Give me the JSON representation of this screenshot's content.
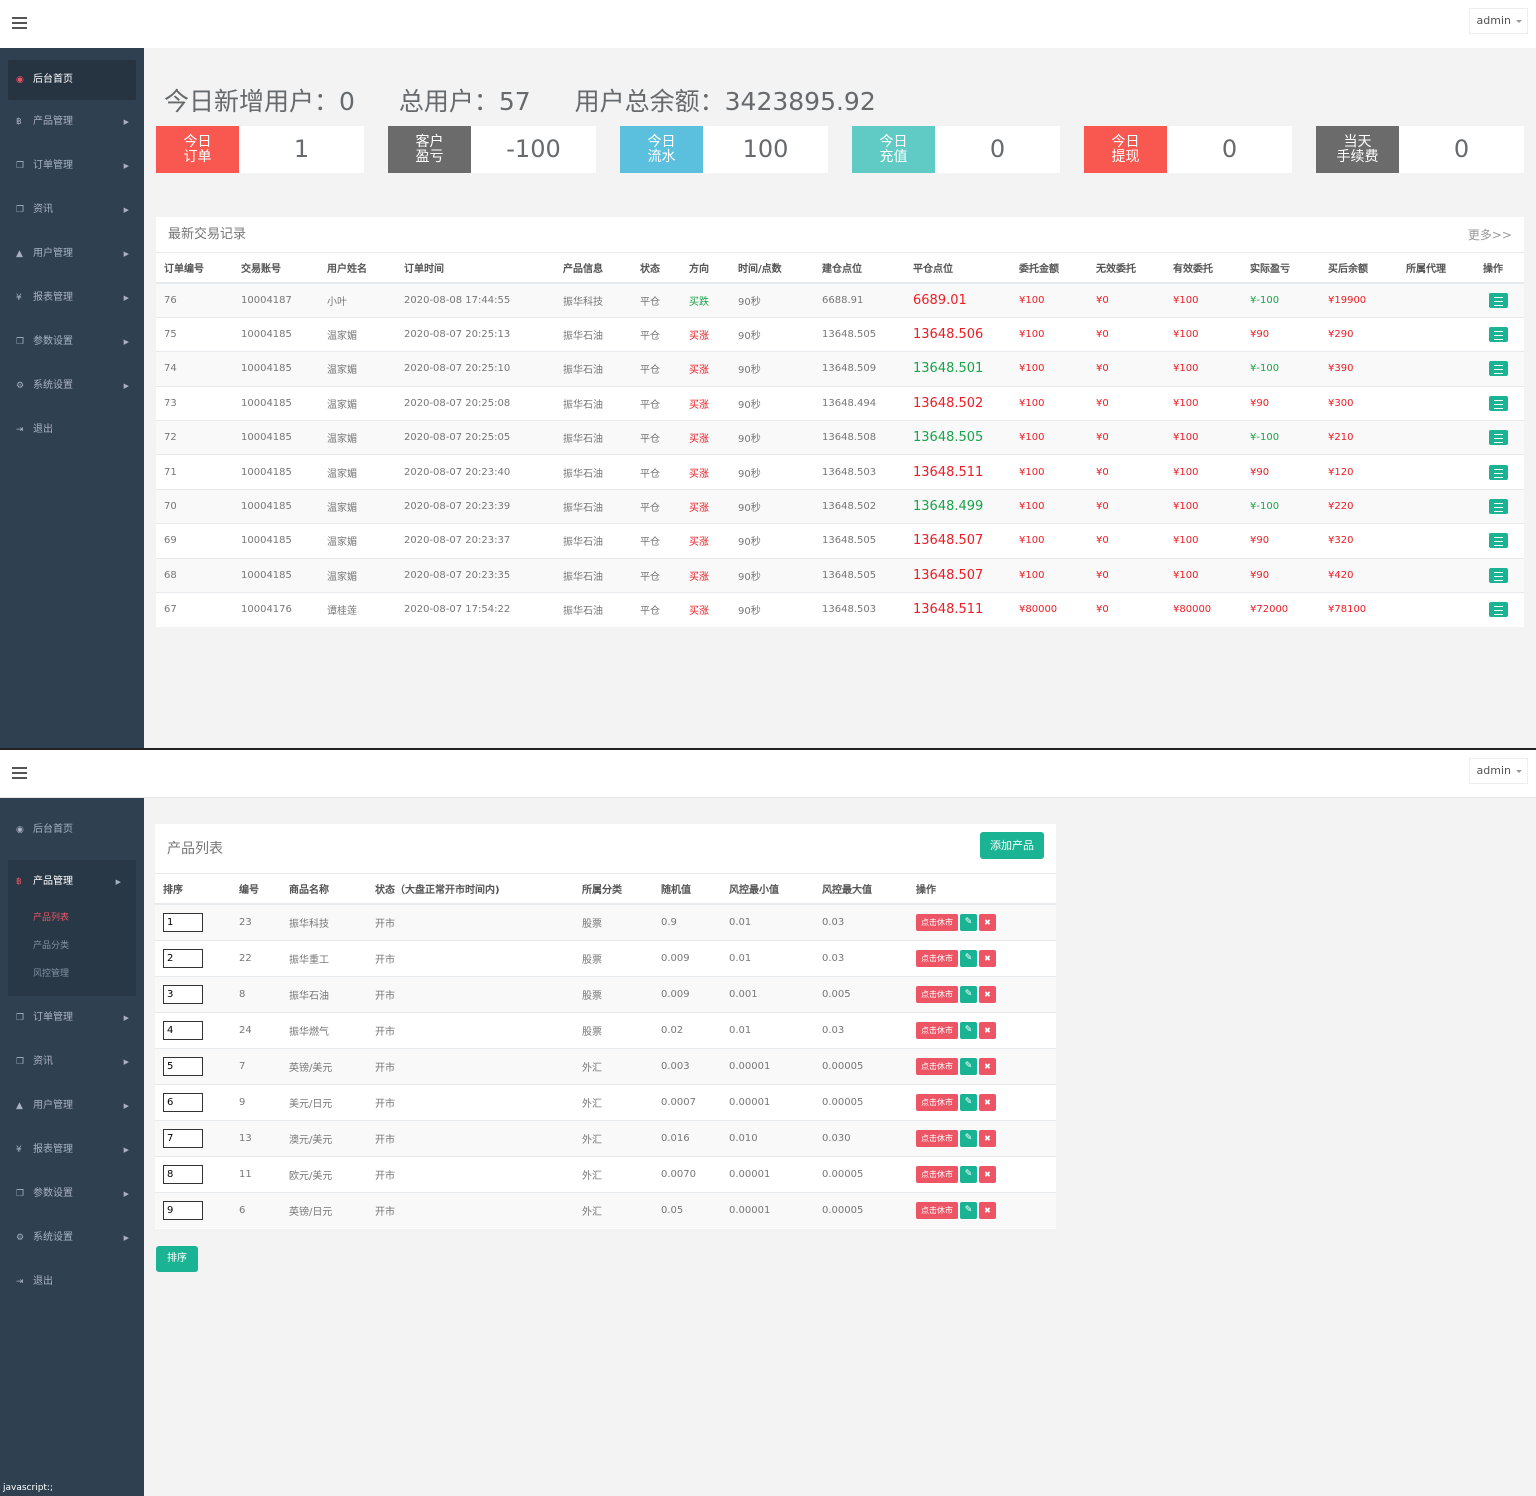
{
  "colors": {
    "sidebar": "#2f4050",
    "red": "#ed5565",
    "teal": "#1ab394",
    "cyan": "#23c6c8",
    "gray": "#676a6c"
  },
  "header": {
    "user": "admin"
  },
  "dashboard": {
    "sidebar": [
      {
        "label": "后台首页",
        "icon": "dashboard-icon"
      },
      {
        "label": "产品管理",
        "icon": "bitcoin-icon"
      },
      {
        "label": "订单管理",
        "icon": "copy-icon"
      },
      {
        "label": "资讯",
        "icon": "copy-icon"
      },
      {
        "label": "用户管理",
        "icon": "user-icon"
      },
      {
        "label": "报表管理",
        "icon": "yen-icon"
      },
      {
        "label": "参数设置",
        "icon": "copy-icon"
      },
      {
        "label": "系统设置",
        "icon": "cogs-icon"
      },
      {
        "label": "退出",
        "icon": "sign-out-icon"
      }
    ],
    "summary": {
      "new_users": "今日新增用户：0",
      "total_users": "总用户：57",
      "total_balance": "用户总余额：3423895.92"
    },
    "stats": [
      {
        "label": "今日\n订单",
        "value": "1",
        "color": "#f8584f"
      },
      {
        "label": "客户\n盈亏",
        "value": "-100",
        "color": "#6b6b6b"
      },
      {
        "label": "今日\n流水",
        "value": "100",
        "color": "#5bc0de"
      },
      {
        "label": "今日\n充值",
        "value": "0",
        "color": "#5fcbc4"
      },
      {
        "label": "今日\n提现",
        "value": "0",
        "color": "#f8584f"
      },
      {
        "label": "当天\n手续费",
        "value": "0",
        "color": "#6b6b6b"
      }
    ],
    "trades": {
      "title": "最新交易记录",
      "more": "更多>>",
      "columns": [
        "订单编号",
        "交易账号",
        "用户姓名",
        "订单时间",
        "产品信息",
        "状态",
        "方向",
        "时间/点数",
        "建仓点位",
        "平仓点位",
        "委托金额",
        "无效委托",
        "有效委托",
        "实际盈亏",
        "买后余额",
        "所属代理",
        "操作"
      ],
      "rows": [
        {
          "id": "76",
          "account": "10004187",
          "name": "小叶",
          "time": "2020-08-08 17:44:55",
          "product": "振华科技",
          "status": "平仓",
          "dir": "买跌",
          "dur": "90秒",
          "open": "6688.91",
          "close": "6689.01",
          "close_color": "red",
          "amount": "¥100",
          "invalid": "¥0",
          "valid": "¥100",
          "pnl": "¥-100",
          "pnl_color": "green",
          "balance": "¥19900",
          "agent": ""
        },
        {
          "id": "75",
          "account": "10004185",
          "name": "温家媚",
          "time": "2020-08-07 20:25:13",
          "product": "振华石油",
          "status": "平仓",
          "dir": "买涨",
          "dur": "90秒",
          "open": "13648.505",
          "close": "13648.506",
          "close_color": "red",
          "amount": "¥100",
          "invalid": "¥0",
          "valid": "¥100",
          "pnl": "¥90",
          "pnl_color": "red",
          "balance": "¥290",
          "agent": ""
        },
        {
          "id": "74",
          "account": "10004185",
          "name": "温家媚",
          "time": "2020-08-07 20:25:10",
          "product": "振华石油",
          "status": "平仓",
          "dir": "买涨",
          "dur": "90秒",
          "open": "13648.509",
          "close": "13648.501",
          "close_color": "green",
          "amount": "¥100",
          "invalid": "¥0",
          "valid": "¥100",
          "pnl": "¥-100",
          "pnl_color": "green",
          "balance": "¥390",
          "agent": ""
        },
        {
          "id": "73",
          "account": "10004185",
          "name": "温家媚",
          "time": "2020-08-07 20:25:08",
          "product": "振华石油",
          "status": "平仓",
          "dir": "买涨",
          "dur": "90秒",
          "open": "13648.494",
          "close": "13648.502",
          "close_color": "red",
          "amount": "¥100",
          "invalid": "¥0",
          "valid": "¥100",
          "pnl": "¥90",
          "pnl_color": "red",
          "balance": "¥300",
          "agent": ""
        },
        {
          "id": "72",
          "account": "10004185",
          "name": "温家媚",
          "time": "2020-08-07 20:25:05",
          "product": "振华石油",
          "status": "平仓",
          "dir": "买涨",
          "dur": "90秒",
          "open": "13648.508",
          "close": "13648.505",
          "close_color": "green",
          "amount": "¥100",
          "invalid": "¥0",
          "valid": "¥100",
          "pnl": "¥-100",
          "pnl_color": "green",
          "balance": "¥210",
          "agent": ""
        },
        {
          "id": "71",
          "account": "10004185",
          "name": "温家媚",
          "time": "2020-08-07 20:23:40",
          "product": "振华石油",
          "status": "平仓",
          "dir": "买涨",
          "dur": "90秒",
          "open": "13648.503",
          "close": "13648.511",
          "close_color": "red",
          "amount": "¥100",
          "invalid": "¥0",
          "valid": "¥100",
          "pnl": "¥90",
          "pnl_color": "red",
          "balance": "¥120",
          "agent": ""
        },
        {
          "id": "70",
          "account": "10004185",
          "name": "温家媚",
          "time": "2020-08-07 20:23:39",
          "product": "振华石油",
          "status": "平仓",
          "dir": "买涨",
          "dur": "90秒",
          "open": "13648.502",
          "close": "13648.499",
          "close_color": "green",
          "amount": "¥100",
          "invalid": "¥0",
          "valid": "¥100",
          "pnl": "¥-100",
          "pnl_color": "green",
          "balance": "¥220",
          "agent": ""
        },
        {
          "id": "69",
          "account": "10004185",
          "name": "温家媚",
          "time": "2020-08-07 20:23:37",
          "product": "振华石油",
          "status": "平仓",
          "dir": "买涨",
          "dur": "90秒",
          "open": "13648.505",
          "close": "13648.507",
          "close_color": "red",
          "amount": "¥100",
          "invalid": "¥0",
          "valid": "¥100",
          "pnl": "¥90",
          "pnl_color": "red",
          "balance": "¥320",
          "agent": ""
        },
        {
          "id": "68",
          "account": "10004185",
          "name": "温家媚",
          "time": "2020-08-07 20:23:35",
          "product": "振华石油",
          "status": "平仓",
          "dir": "买涨",
          "dur": "90秒",
          "open": "13648.505",
          "close": "13648.507",
          "close_color": "red",
          "amount": "¥100",
          "invalid": "¥0",
          "valid": "¥100",
          "pnl": "¥90",
          "pnl_color": "red",
          "balance": "¥420",
          "agent": ""
        },
        {
          "id": "67",
          "account": "10004176",
          "name": "谭桂莲",
          "time": "2020-08-07 17:54:22",
          "product": "振华石油",
          "status": "平仓",
          "dir": "买涨",
          "dur": "90秒",
          "open": "13648.503",
          "close": "13648.511",
          "close_color": "red",
          "amount": "¥80000",
          "invalid": "¥0",
          "valid": "¥80000",
          "pnl": "¥72000",
          "pnl_color": "red",
          "balance": "¥78100",
          "agent": ""
        }
      ]
    }
  },
  "products": {
    "sidebar": {
      "home": "后台首页",
      "product_mgmt": "产品管理",
      "sub": [
        "产品列表",
        "产品分类",
        "风控管理"
      ],
      "rest": [
        {
          "label": "订单管理",
          "icon": "copy-icon"
        },
        {
          "label": "资讯",
          "icon": "copy-icon"
        },
        {
          "label": "用户管理",
          "icon": "user-icon"
        },
        {
          "label": "报表管理",
          "icon": "yen-icon"
        },
        {
          "label": "参数设置",
          "icon": "copy-icon"
        },
        {
          "label": "系统设置",
          "icon": "cogs-icon"
        },
        {
          "label": "退出",
          "icon": "sign-out-icon"
        }
      ]
    },
    "title": "产品列表",
    "add_button": "添加产品",
    "sort_button": "排序",
    "columns": [
      "排序",
      "编号",
      "商品名称",
      "状态（大盘正常开市时间内)",
      "所属分类",
      "随机值",
      "风控最小值",
      "风控最大值",
      "操作"
    ],
    "rows": [
      {
        "sort": "1",
        "id": "23",
        "name": "振华科技",
        "status": "开市",
        "category": "股票",
        "random": "0.9",
        "min": "0.01",
        "max": "0.03"
      },
      {
        "sort": "2",
        "id": "22",
        "name": "振华重工",
        "status": "开市",
        "category": "股票",
        "random": "0.009",
        "min": "0.01",
        "max": "0.03"
      },
      {
        "sort": "3",
        "id": "8",
        "name": "振华石油",
        "status": "开市",
        "category": "股票",
        "random": "0.009",
        "min": "0.001",
        "max": "0.005"
      },
      {
        "sort": "4",
        "id": "24",
        "name": "振华燃气",
        "status": "开市",
        "category": "股票",
        "random": "0.02",
        "min": "0.01",
        "max": "0.03"
      },
      {
        "sort": "5",
        "id": "7",
        "name": "英镑/美元",
        "status": "开市",
        "category": "外汇",
        "random": "0.003",
        "min": "0.00001",
        "max": "0.00005"
      },
      {
        "sort": "6",
        "id": "9",
        "name": "美元/日元",
        "status": "开市",
        "category": "外汇",
        "random": "0.0007",
        "min": "0.00001",
        "max": "0.00005"
      },
      {
        "sort": "7",
        "id": "13",
        "name": "澳元/美元",
        "status": "开市",
        "category": "外汇",
        "random": "0.016",
        "min": "0.010",
        "max": "0.030"
      },
      {
        "sort": "8",
        "id": "11",
        "name": "欧元/美元",
        "status": "开市",
        "category": "外汇",
        "random": "0.0070",
        "min": "0.00001",
        "max": "0.00005"
      },
      {
        "sort": "9",
        "id": "6",
        "name": "英镑/日元",
        "status": "开市",
        "category": "外汇",
        "random": "0.05",
        "min": "0.00001",
        "max": "0.00005"
      }
    ],
    "close_market_label": "点击休市",
    "status_bar": "javascript:;"
  }
}
